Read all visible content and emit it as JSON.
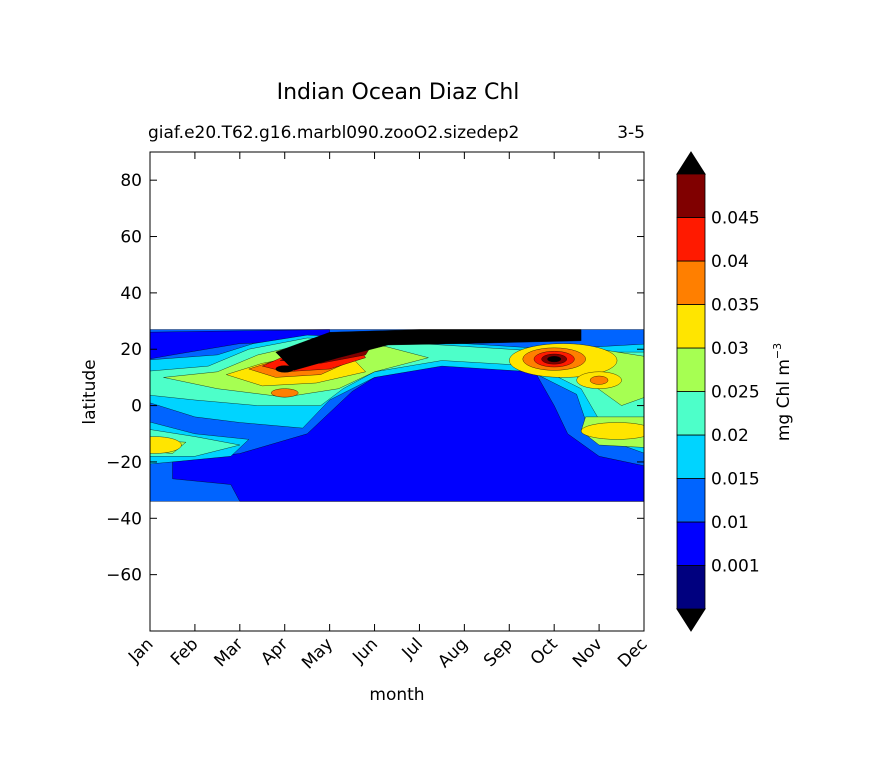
{
  "chart_data": {
    "type": "heatmap",
    "title": "Indian Ocean Diaz Chl",
    "subtitle_left": "giaf.e20.T62.g16.marbl090.zooO2.sizedep2",
    "subtitle_right": "3-5",
    "xlabel": "month",
    "ylabel": "latitude",
    "x_ticks": [
      "Jan",
      "Feb",
      "Mar",
      "Apr",
      "May",
      "Jun",
      "Jul",
      "Aug",
      "Sep",
      "Oct",
      "Nov",
      "Dec"
    ],
    "y_ticks": [
      80,
      60,
      40,
      20,
      0,
      -20,
      -40,
      -60
    ],
    "ylim": [
      -80,
      90
    ],
    "data_lat_range": [
      -34,
      27
    ],
    "colorbar": {
      "label": "mg Chl m",
      "label_superscript": "−3",
      "tick_labels": [
        "0.001",
        "0.01",
        "0.015",
        "0.02",
        "0.025",
        "0.03",
        "0.035",
        "0.04",
        "0.045"
      ],
      "levels": [
        0.001,
        0.01,
        0.015,
        0.02,
        0.025,
        0.03,
        0.035,
        0.04,
        0.045
      ],
      "colors": [
        "#00007f",
        "#0000ff",
        "#0064ff",
        "#00d4ff",
        "#4dffc9",
        "#a6ff52",
        "#ffe500",
        "#ff7f00",
        "#ff1a00",
        "#800000"
      ],
      "under_color": "#000000",
      "over_color": "#000000",
      "extend": "both"
    }
  }
}
